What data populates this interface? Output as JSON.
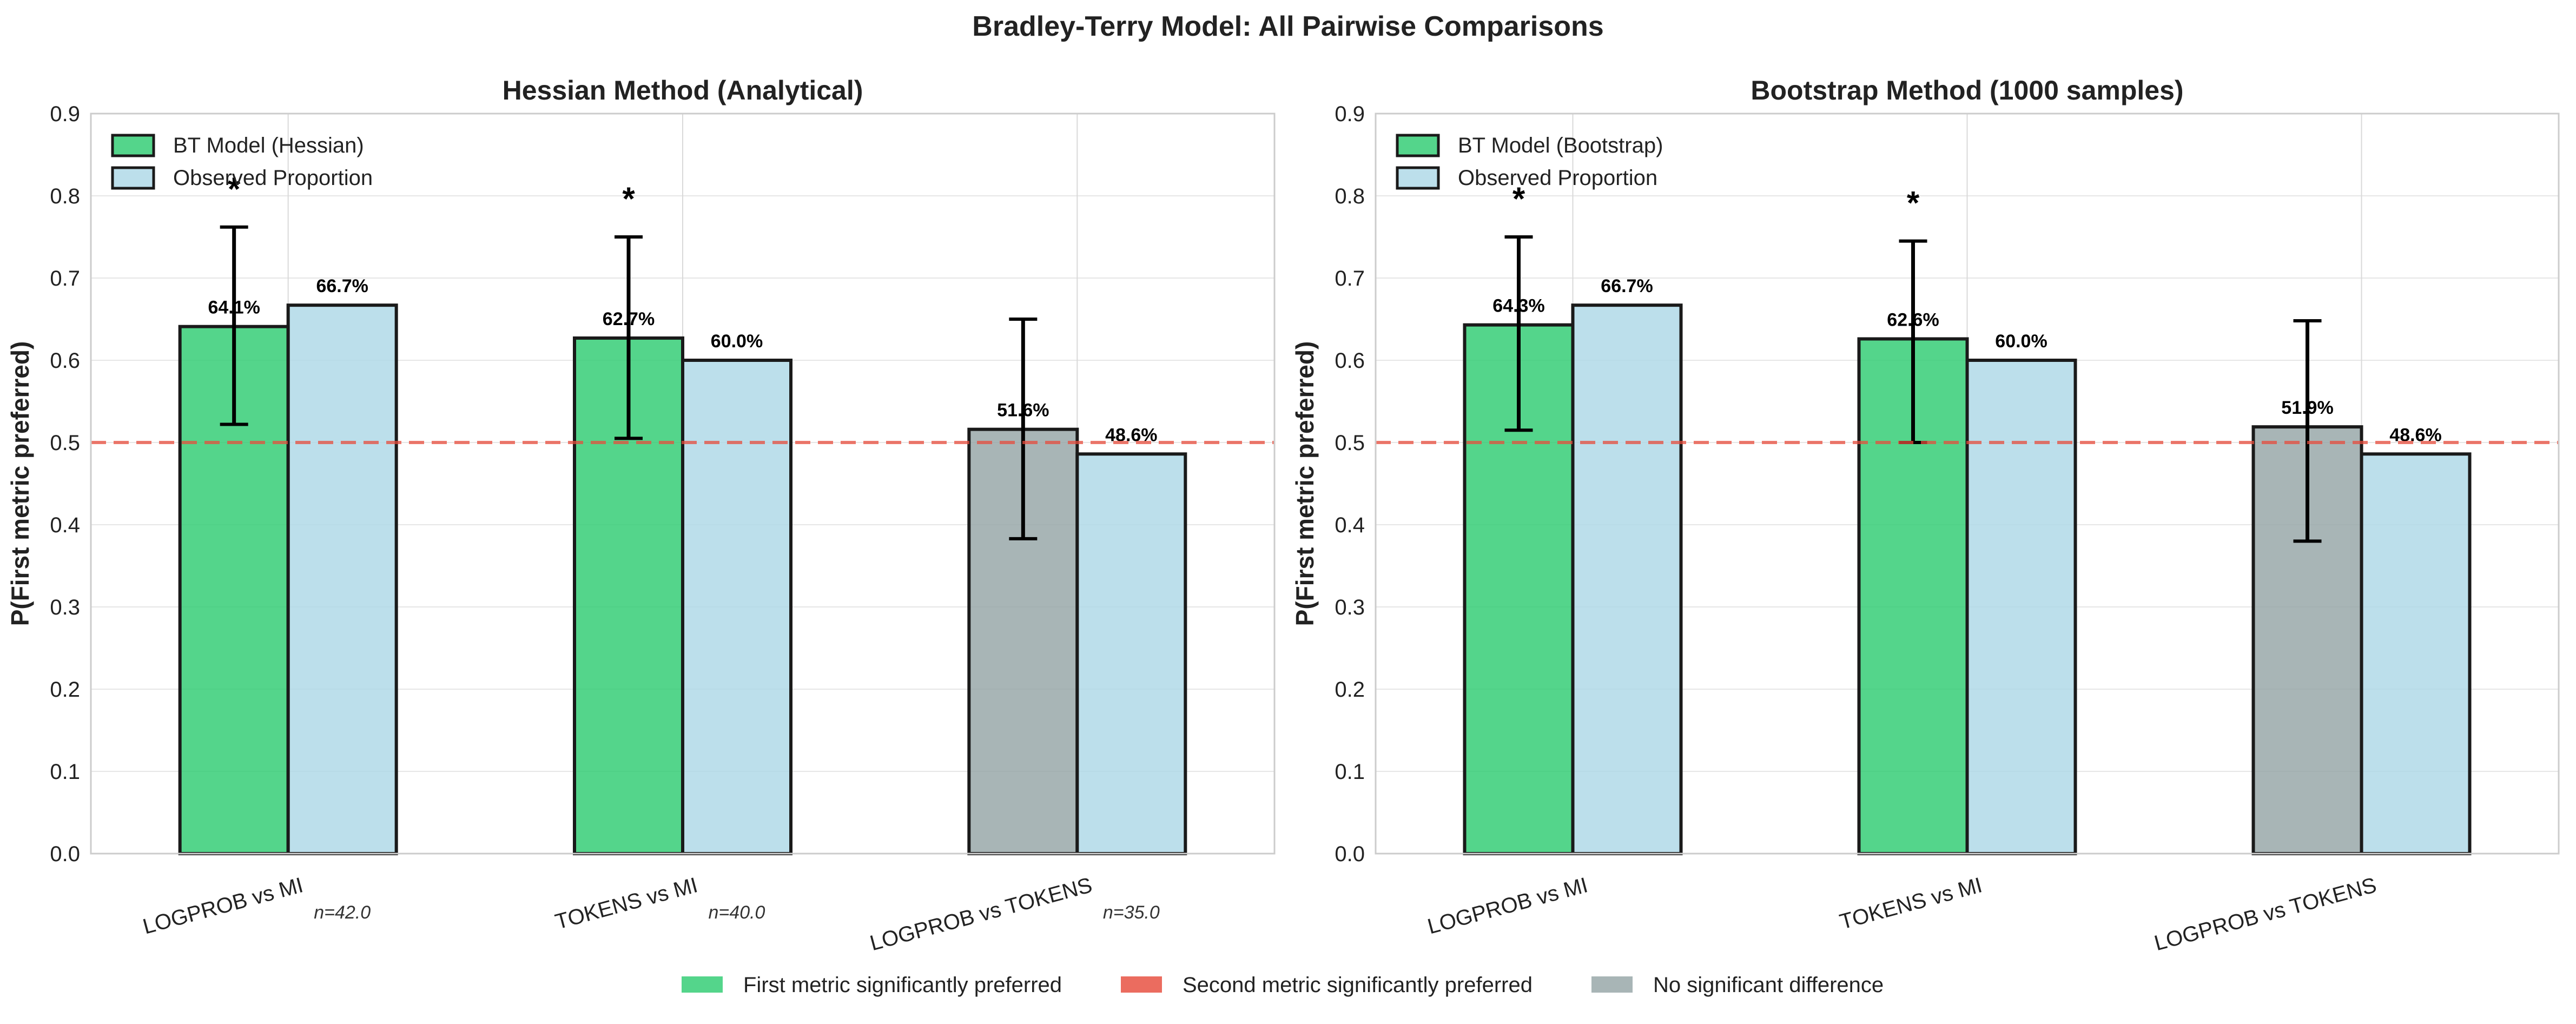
{
  "figure": {
    "suptitle": "Bradley-Terry Model: All Pairwise Comparisons",
    "legend": [
      {
        "label": "First metric significantly preferred",
        "color": "#2ecc71"
      },
      {
        "label": "Second metric significantly preferred",
        "color": "#e74c3c"
      },
      {
        "label": "No significant difference",
        "color": "#95a5a6"
      }
    ]
  },
  "colors": {
    "significant_first": "#2ecc71",
    "significant_second": "#e74c3c",
    "not_significant": "#95a5a6",
    "observed": "#add8e6",
    "reference_line": "#e74c3c",
    "bar_edge": "#1a1a1a"
  },
  "chart_data": [
    {
      "type": "bar",
      "title": "Hessian Method (Analytical)",
      "xlabel": "",
      "ylabel": "P(First metric preferred)",
      "ylim": [
        0,
        0.9
      ],
      "yticks": [
        "0.0",
        "0.1",
        "0.2",
        "0.3",
        "0.4",
        "0.5",
        "0.6",
        "0.7",
        "0.8",
        "0.9"
      ],
      "grid": true,
      "legend_position": "top-left",
      "reference_line": 0.5,
      "categories": [
        "LOGPROB vs MI",
        "TOKENS vs MI",
        "LOGPROB vs TOKENS"
      ],
      "n_labels": [
        "n=42.0",
        "n=40.0",
        "n=35.0"
      ],
      "significance": [
        "*",
        "*",
        ""
      ],
      "significance_class": [
        "significant_first",
        "significant_first",
        "not_significant"
      ],
      "series": [
        {
          "name": "BT Model (Hessian)",
          "values": [
            0.641,
            0.627,
            0.516
          ],
          "labels": [
            "64.1%",
            "62.7%",
            "51.6%"
          ],
          "ci_low": [
            0.522,
            0.505,
            0.383
          ],
          "ci_high": [
            0.762,
            0.75,
            0.65
          ]
        },
        {
          "name": "Observed Proportion",
          "values": [
            0.667,
            0.6,
            0.486
          ],
          "labels": [
            "66.7%",
            "60.0%",
            "48.6%"
          ]
        }
      ]
    },
    {
      "type": "bar",
      "title": "Bootstrap Method (1000 samples)",
      "xlabel": "",
      "ylabel": "P(First metric preferred)",
      "ylim": [
        0,
        0.9
      ],
      "yticks": [
        "0.0",
        "0.1",
        "0.2",
        "0.3",
        "0.4",
        "0.5",
        "0.6",
        "0.7",
        "0.8",
        "0.9"
      ],
      "grid": true,
      "legend_position": "top-left",
      "reference_line": 0.5,
      "categories": [
        "LOGPROB vs MI",
        "TOKENS vs MI",
        "LOGPROB vs TOKENS"
      ],
      "n_labels": [
        "",
        "",
        ""
      ],
      "significance": [
        "*",
        "*",
        ""
      ],
      "significance_class": [
        "significant_first",
        "significant_first",
        "not_significant"
      ],
      "series": [
        {
          "name": "BT Model (Bootstrap)",
          "values": [
            0.643,
            0.626,
            0.519
          ],
          "labels": [
            "64.3%",
            "62.6%",
            "51.9%"
          ],
          "ci_low": [
            0.515,
            0.5,
            0.38
          ],
          "ci_high": [
            0.75,
            0.745,
            0.648
          ]
        },
        {
          "name": "Observed Proportion",
          "values": [
            0.667,
            0.6,
            0.486
          ],
          "labels": [
            "66.7%",
            "60.0%",
            "48.6%"
          ]
        }
      ]
    }
  ]
}
